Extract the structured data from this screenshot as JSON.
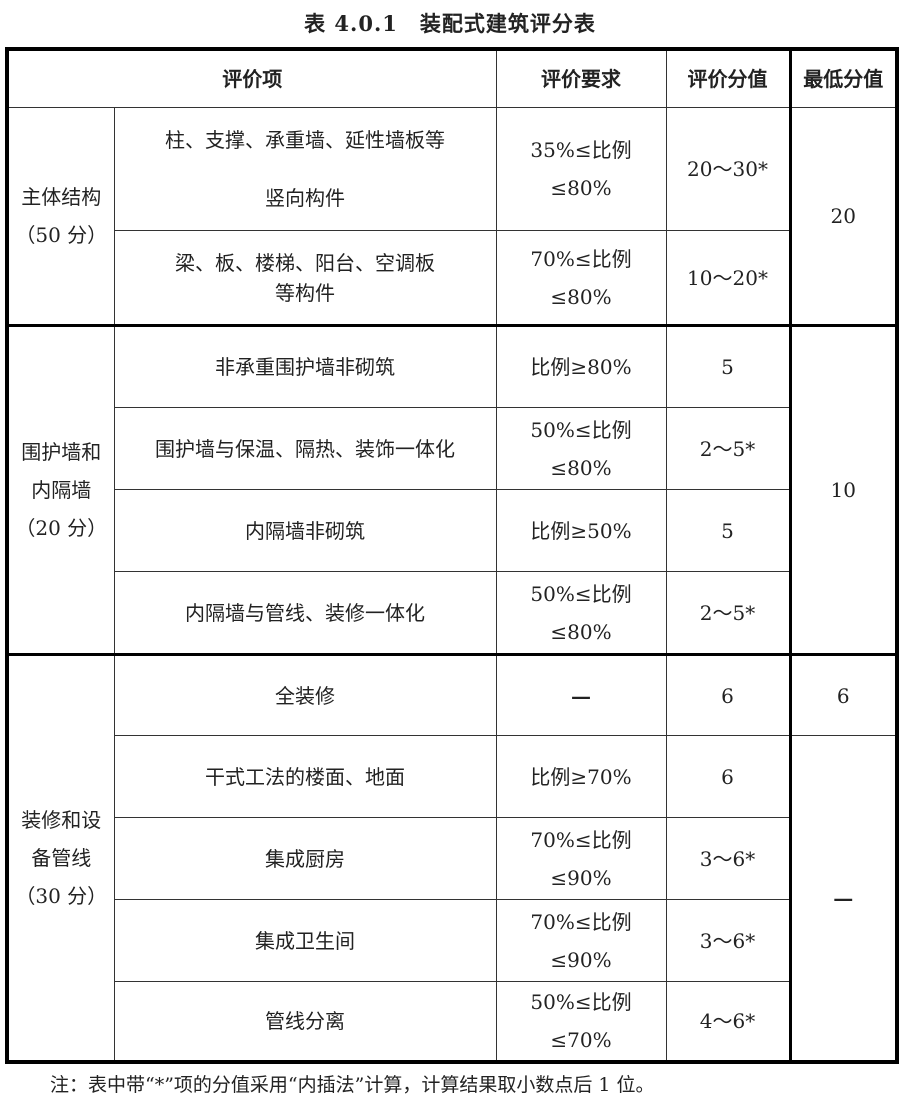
{
  "title": "表 4.0.1　装配式建筑评分表",
  "headers": {
    "item": "评价项",
    "requirement": "评价要求",
    "score": "评价分值",
    "min_score": "最低分值"
  },
  "groups": [
    {
      "name": "主体结构",
      "points": "（50 分）",
      "min_score": "20"
    },
    {
      "name_line1": "围护墙和",
      "name_line2": "内隔墙",
      "points": "（20 分）",
      "min_score": "10"
    },
    {
      "name_line1": "装修和设",
      "name_line2": "备管线",
      "points": "（30 分）",
      "min_score_full": "6",
      "min_score_rest": "—"
    }
  ],
  "rows": [
    {
      "item_line1": "柱、支撑、承重墙、延性墙板等",
      "item_line2": "竖向构件",
      "requirement": "35%≤比例≤80%",
      "score": "20～30*"
    },
    {
      "item_line1": "梁、板、楼梯、阳台、空调板",
      "item_line2": "等构件",
      "requirement": "70%≤比例≤80%",
      "score": "10～20*"
    },
    {
      "item": "非承重围护墙非砌筑",
      "requirement": "比例≥80%",
      "score": "5"
    },
    {
      "item": "围护墙与保温、隔热、装饰一体化",
      "requirement": "50%≤比例≤80%",
      "score": "2～5*"
    },
    {
      "item": "内隔墙非砌筑",
      "requirement": "比例≥50%",
      "score": "5"
    },
    {
      "item": "内隔墙与管线、装修一体化",
      "requirement": "50%≤比例≤80%",
      "score": "2～5*"
    },
    {
      "item": "全装修",
      "requirement": "—",
      "score": "6"
    },
    {
      "item": "干式工法的楼面、地面",
      "requirement": "比例≥70%",
      "score": "6"
    },
    {
      "item": "集成厨房",
      "requirement": "70%≤比例≤90%",
      "score": "3～6*"
    },
    {
      "item": "集成卫生间",
      "requirement": "70%≤比例≤90%",
      "score": "3～6*"
    },
    {
      "item": "管线分离",
      "requirement": "50%≤比例≤70%",
      "score": "4～6*"
    }
  ],
  "note": "注：表中带“*”项的分值采用“内插法”计算，计算结果取小数点后 1 位。"
}
